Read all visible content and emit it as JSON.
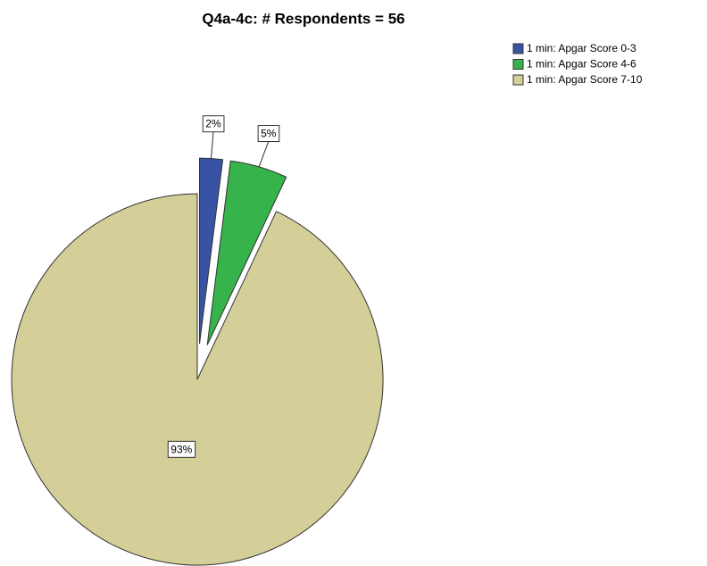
{
  "chart_data": {
    "type": "pie",
    "title": "Q4a-4c: # Respondents = 56",
    "categories": [
      "1 min: Apgar Score 0-3",
      "1 min: Apgar Score 4-6",
      "1 min: Apgar Score 7-10"
    ],
    "values": [
      2,
      5,
      93
    ],
    "value_labels": [
      "2%",
      "5%",
      "93%"
    ],
    "colors": [
      "#3953a4",
      "#36b34a",
      "#d4ce98"
    ],
    "legend": "top-right"
  }
}
